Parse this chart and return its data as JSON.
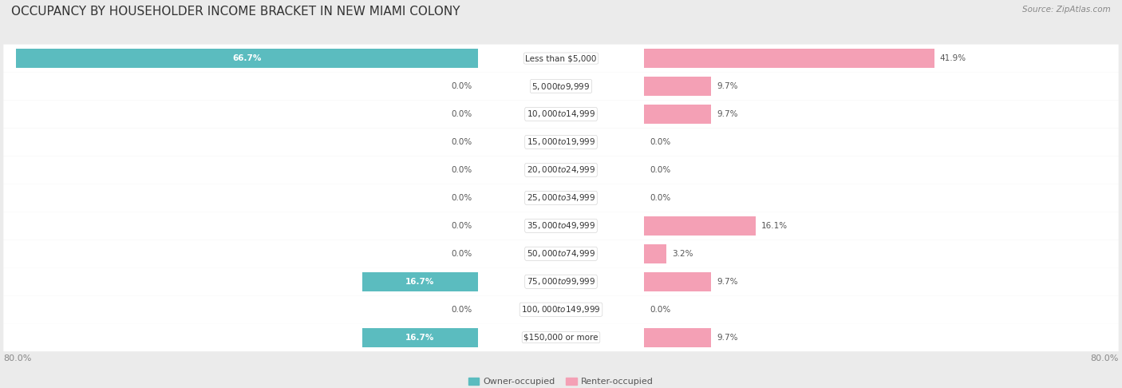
{
  "title": "OCCUPANCY BY HOUSEHOLDER INCOME BRACKET IN NEW MIAMI COLONY",
  "source": "Source: ZipAtlas.com",
  "categories": [
    "Less than $5,000",
    "$5,000 to $9,999",
    "$10,000 to $14,999",
    "$15,000 to $19,999",
    "$20,000 to $24,999",
    "$25,000 to $34,999",
    "$35,000 to $49,999",
    "$50,000 to $74,999",
    "$75,000 to $99,999",
    "$100,000 to $149,999",
    "$150,000 or more"
  ],
  "owner_values": [
    66.7,
    0.0,
    0.0,
    0.0,
    0.0,
    0.0,
    0.0,
    0.0,
    16.7,
    0.0,
    16.7
  ],
  "renter_values": [
    41.9,
    9.7,
    9.7,
    0.0,
    0.0,
    0.0,
    16.1,
    3.2,
    9.7,
    0.0,
    9.7
  ],
  "owner_color": "#5bbcbf",
  "renter_color": "#f4a0b5",
  "owner_label": "Owner-occupied",
  "renter_label": "Renter-occupied",
  "max_val": 80.0,
  "bg_color": "#ebebeb",
  "row_bg_color": "#ffffff",
  "title_color": "#333333",
  "source_color": "#888888",
  "value_color_inside": "#ffffff",
  "value_color_outside": "#555555",
  "cat_color": "#333333",
  "title_fontsize": 11,
  "source_fontsize": 7.5,
  "value_fontsize": 7.5,
  "cat_fontsize": 7.5,
  "legend_fontsize": 8,
  "axis_fontsize": 8
}
